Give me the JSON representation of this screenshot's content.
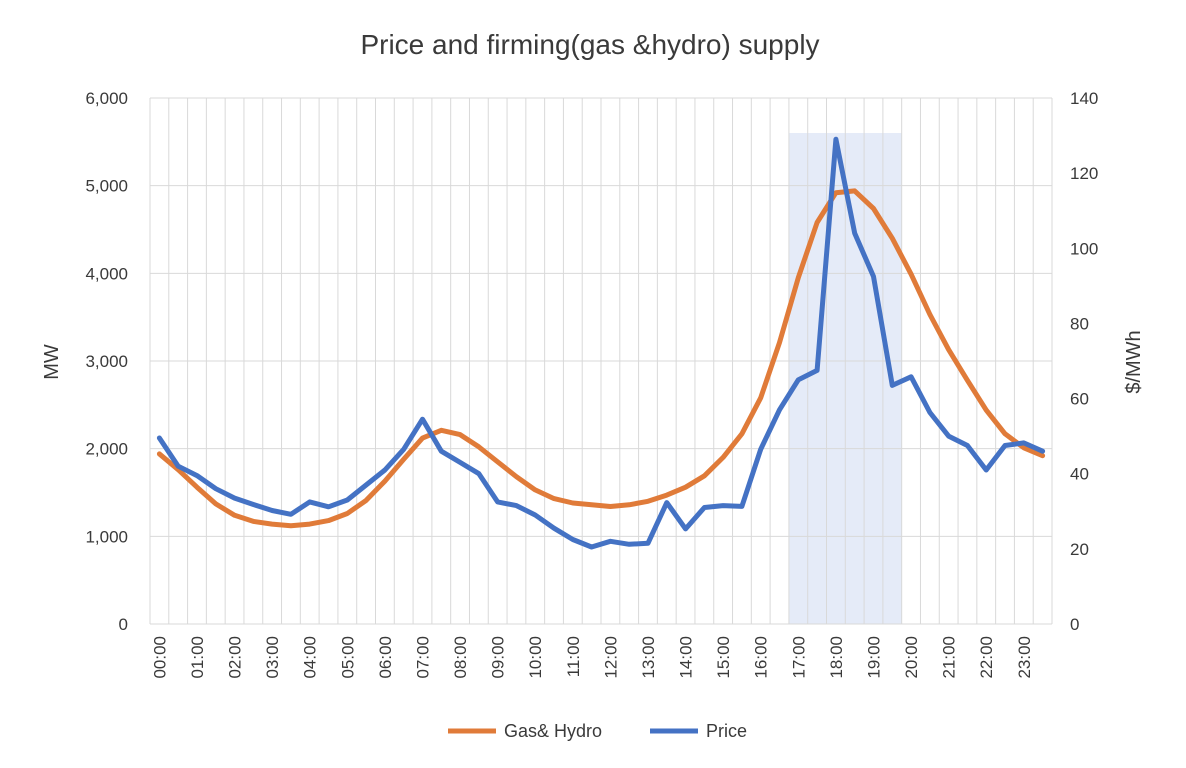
{
  "chart_data": {
    "type": "line",
    "title": "Price and firming(gas &hydro) supply",
    "ylabel": "MW",
    "y2label": "$/MWh",
    "ylim": [
      0,
      6000
    ],
    "y2lim": [
      0,
      140
    ],
    "y_ticks": [
      "0",
      "1,000",
      "2,000",
      "3,000",
      "4,000",
      "5,000",
      "6,000"
    ],
    "y2_ticks": [
      "0",
      "20",
      "40",
      "60",
      "80",
      "100",
      "120",
      "140"
    ],
    "x_labels": [
      "00:00",
      "01:00",
      "02:00",
      "03:00",
      "04:00",
      "05:00",
      "06:00",
      "07:00",
      "08:00",
      "09:00",
      "10:00",
      "11:00",
      "12:00",
      "13:00",
      "14:00",
      "15:00",
      "16:00",
      "17:00",
      "18:00",
      "19:00",
      "20:00",
      "21:00",
      "22:00",
      "23:00"
    ],
    "x": [
      "00:00",
      "00:30",
      "01:00",
      "01:30",
      "02:00",
      "02:30",
      "03:00",
      "03:30",
      "04:00",
      "04:30",
      "05:00",
      "05:30",
      "06:00",
      "06:30",
      "07:00",
      "07:30",
      "08:00",
      "08:30",
      "09:00",
      "09:30",
      "10:00",
      "10:30",
      "11:00",
      "11:30",
      "12:00",
      "12:30",
      "13:00",
      "13:30",
      "14:00",
      "14:30",
      "15:00",
      "15:30",
      "16:00",
      "16:30",
      "17:00",
      "17:30",
      "18:00",
      "18:30",
      "19:00",
      "19:30",
      "20:00",
      "20:30",
      "21:00",
      "21:30",
      "22:00",
      "22:30",
      "23:00",
      "23:30"
    ],
    "series": [
      {
        "name": "Gas& Hydro",
        "axis": "left",
        "color": "#E07B39",
        "values": [
          1940,
          1760,
          1560,
          1370,
          1240,
          1170,
          1140,
          1120,
          1140,
          1180,
          1260,
          1410,
          1630,
          1880,
          2120,
          2210,
          2160,
          2020,
          1850,
          1680,
          1530,
          1430,
          1380,
          1360,
          1340,
          1360,
          1400,
          1470,
          1560,
          1690,
          1900,
          2170,
          2580,
          3210,
          3950,
          4580,
          4920,
          4940,
          4740,
          4400,
          3990,
          3530,
          3130,
          2780,
          2440,
          2170,
          2010,
          1920
        ]
      },
      {
        "name": "Price",
        "axis": "right",
        "color": "#4472C4",
        "values": [
          49.5,
          42,
          39.5,
          36,
          33.5,
          31.8,
          30.2,
          29.2,
          32.5,
          31.2,
          33,
          37,
          41,
          46.5,
          54.5,
          46,
          43,
          40,
          32.5,
          31.5,
          29,
          25.5,
          22.5,
          20.5,
          22,
          21.2,
          21.5,
          32.3,
          25.3,
          31,
          31.5,
          31.3,
          46.5,
          57,
          65,
          67.5,
          129,
          104,
          92.5,
          63.5,
          65.8,
          56.3,
          50,
          47.5,
          41,
          47.5,
          48.2,
          46
        ]
      }
    ],
    "shaded_region": {
      "from": "17:00",
      "to": "19:30",
      "color": "#DCE4F5"
    },
    "grid": true,
    "legend_position": "bottom"
  }
}
